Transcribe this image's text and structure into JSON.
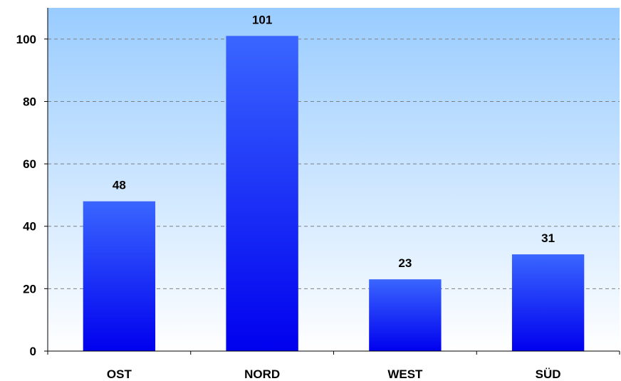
{
  "chart_data": {
    "type": "bar",
    "categories": [
      "OST",
      "NORD",
      "WEST",
      "SÜD"
    ],
    "values": [
      48,
      101,
      23,
      31
    ],
    "data_labels": [
      "48",
      "101",
      "23",
      "31"
    ],
    "ylim": [
      0,
      110
    ],
    "yticks": [
      0,
      20,
      40,
      60,
      80,
      100
    ],
    "ytick_labels": [
      "0",
      "20",
      "40",
      "60",
      "80",
      "100"
    ],
    "grid": true,
    "grid_style": "dashed",
    "legend": "none",
    "colors": {
      "bar_top": "#3a66ff",
      "bar_bottom": "#0000ee",
      "plot_bg_top": "#99ccff",
      "plot_bg_bottom": "#ffffff",
      "grid": "#808080"
    }
  }
}
